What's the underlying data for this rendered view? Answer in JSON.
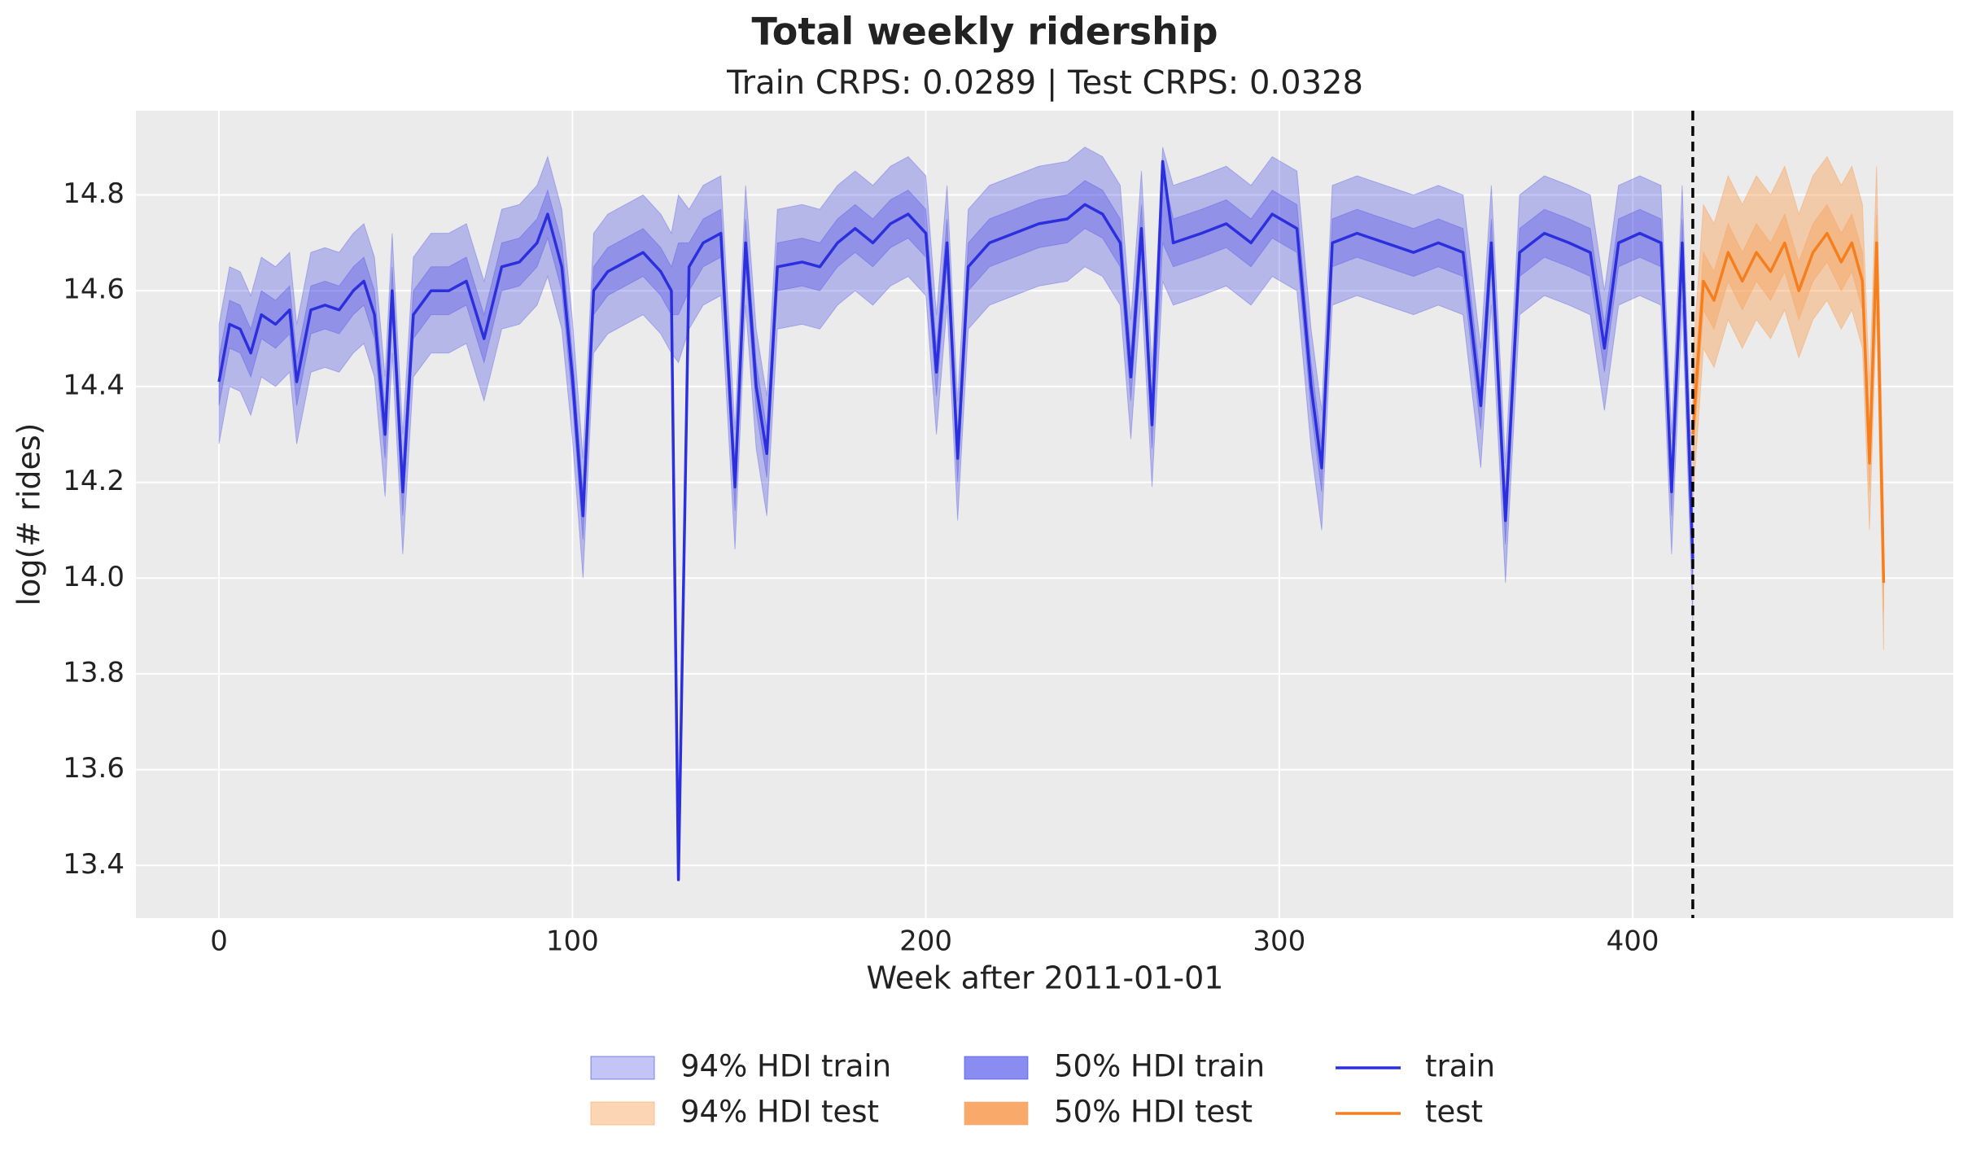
{
  "chart_data": {
    "type": "line",
    "title": "Total weekly ridership",
    "subtitle": "Train CRPS: 0.0289 | Test CRPS: 0.0328",
    "x_label": "Week after 2011-01-01",
    "y_label": "log(# rides)",
    "xlim": [
      -23.5,
      490.7
    ],
    "ylim": [
      13.29,
      14.976
    ],
    "xticks": [
      0,
      100,
      200,
      300,
      400
    ],
    "yticks": [
      13.4,
      13.6,
      13.8,
      {
        "value": 14,
        "label": "14.0"
      },
      14.2,
      14.4,
      14.6,
      14.8
    ],
    "grid": true,
    "vline": 417,
    "legend": "bottom",
    "series": [
      {
        "name": "train",
        "color": "#2b2fdc",
        "x": [
          0,
          3,
          6,
          9,
          12,
          16,
          20,
          22,
          26,
          30,
          34,
          38,
          41,
          44,
          47,
          49,
          52,
          55,
          60,
          65,
          70,
          75,
          80,
          85,
          90,
          93,
          97,
          100,
          103,
          106,
          110,
          115,
          120,
          125,
          128,
          130,
          133,
          137,
          142,
          146,
          149,
          152,
          155,
          158,
          165,
          170,
          175,
          180,
          185,
          190,
          195,
          200,
          203,
          206,
          209,
          212,
          218,
          225,
          232,
          240,
          245,
          250,
          255,
          258,
          261,
          264,
          267,
          270,
          278,
          285,
          292,
          298,
          305,
          309,
          312,
          315,
          322,
          330,
          338,
          345,
          352,
          357,
          360,
          364,
          368,
          375,
          382,
          388,
          392,
          396,
          402,
          408,
          411,
          414,
          417
        ],
        "values": [
          14.41,
          14.53,
          14.52,
          14.47,
          14.55,
          14.53,
          14.56,
          14.41,
          14.56,
          14.57,
          14.56,
          14.6,
          14.62,
          14.55,
          14.3,
          14.6,
          14.18,
          14.55,
          14.6,
          14.6,
          14.62,
          14.5,
          14.65,
          14.66,
          14.7,
          14.76,
          14.65,
          14.42,
          14.13,
          14.6,
          14.64,
          14.66,
          14.68,
          14.64,
          14.6,
          13.37,
          14.65,
          14.7,
          14.72,
          14.19,
          14.7,
          14.4,
          14.26,
          14.65,
          14.66,
          14.65,
          14.7,
          14.73,
          14.7,
          14.74,
          14.76,
          14.72,
          14.43,
          14.7,
          14.25,
          14.65,
          14.7,
          14.72,
          14.74,
          14.75,
          14.78,
          14.76,
          14.7,
          14.42,
          14.73,
          14.32,
          14.87,
          14.7,
          14.72,
          14.74,
          14.7,
          14.76,
          14.73,
          14.4,
          14.23,
          14.7,
          14.72,
          14.7,
          14.68,
          14.7,
          14.68,
          14.36,
          14.7,
          14.12,
          14.68,
          14.72,
          14.7,
          14.68,
          14.48,
          14.7,
          14.72,
          14.7,
          14.18,
          14.7,
          14.04
        ],
        "bands": [
          {
            "name": "94% HDI train",
            "color": "#3b3fe6",
            "opacity": 0.3,
            "lower": [
              14.28,
              14.4,
              14.39,
              14.34,
              14.42,
              14.4,
              14.43,
              14.28,
              14.43,
              14.44,
              14.43,
              14.47,
              14.49,
              14.42,
              14.17,
              14.47,
              14.05,
              14.42,
              14.47,
              14.47,
              14.49,
              14.37,
              14.52,
              14.53,
              14.57,
              14.63,
              14.52,
              14.29,
              14.0,
              14.47,
              14.51,
              14.53,
              14.55,
              14.51,
              14.47,
              14.45,
              14.52,
              14.57,
              14.59,
              14.06,
              14.57,
              14.27,
              14.13,
              14.52,
              14.53,
              14.52,
              14.57,
              14.6,
              14.57,
              14.61,
              14.63,
              14.59,
              14.3,
              14.57,
              14.12,
              14.52,
              14.57,
              14.59,
              14.61,
              14.62,
              14.65,
              14.63,
              14.57,
              14.29,
              14.6,
              14.19,
              14.62,
              14.57,
              14.59,
              14.61,
              14.57,
              14.63,
              14.6,
              14.27,
              14.1,
              14.57,
              14.59,
              14.57,
              14.55,
              14.57,
              14.55,
              14.23,
              14.57,
              13.99,
              14.55,
              14.59,
              14.57,
              14.55,
              14.35,
              14.57,
              14.59,
              14.57,
              14.05,
              14.57,
              13.91
            ],
            "upper": [
              14.53,
              14.65,
              14.64,
              14.59,
              14.67,
              14.65,
              14.68,
              14.53,
              14.68,
              14.69,
              14.68,
              14.72,
              14.74,
              14.67,
              14.42,
              14.72,
              14.3,
              14.67,
              14.72,
              14.72,
              14.74,
              14.62,
              14.77,
              14.78,
              14.82,
              14.88,
              14.77,
              14.54,
              14.25,
              14.72,
              14.76,
              14.78,
              14.8,
              14.76,
              14.72,
              14.8,
              14.77,
              14.82,
              14.84,
              14.31,
              14.82,
              14.52,
              14.38,
              14.77,
              14.78,
              14.77,
              14.82,
              14.85,
              14.82,
              14.86,
              14.88,
              14.84,
              14.55,
              14.82,
              14.37,
              14.77,
              14.82,
              14.84,
              14.86,
              14.87,
              14.9,
              14.88,
              14.82,
              14.54,
              14.85,
              14.44,
              14.9,
              14.82,
              14.84,
              14.86,
              14.82,
              14.88,
              14.85,
              14.52,
              14.35,
              14.82,
              14.84,
              14.82,
              14.8,
              14.82,
              14.8,
              14.48,
              14.82,
              14.24,
              14.8,
              14.84,
              14.82,
              14.8,
              14.6,
              14.82,
              14.84,
              14.82,
              14.3,
              14.82,
              14.16
            ]
          },
          {
            "name": "50% HDI train",
            "color": "#3b3fe6",
            "opacity": 0.3,
            "lower": [
              14.36,
              14.48,
              14.47,
              14.42,
              14.5,
              14.48,
              14.51,
              14.36,
              14.51,
              14.52,
              14.51,
              14.55,
              14.57,
              14.5,
              14.25,
              14.55,
              14.13,
              14.5,
              14.55,
              14.55,
              14.57,
              14.45,
              14.6,
              14.61,
              14.65,
              14.71,
              14.6,
              14.37,
              14.08,
              14.55,
              14.59,
              14.61,
              14.63,
              14.59,
              14.55,
              14.55,
              14.6,
              14.65,
              14.67,
              14.14,
              14.65,
              14.35,
              14.21,
              14.6,
              14.61,
              14.6,
              14.65,
              14.68,
              14.65,
              14.69,
              14.71,
              14.67,
              14.38,
              14.65,
              14.2,
              14.6,
              14.65,
              14.67,
              14.69,
              14.7,
              14.73,
              14.71,
              14.65,
              14.37,
              14.68,
              14.27,
              14.7,
              14.65,
              14.67,
              14.69,
              14.65,
              14.71,
              14.68,
              14.35,
              14.18,
              14.65,
              14.67,
              14.65,
              14.63,
              14.65,
              14.63,
              14.31,
              14.65,
              14.07,
              14.63,
              14.67,
              14.65,
              14.63,
              14.43,
              14.65,
              14.67,
              14.65,
              14.13,
              14.65,
              13.99
            ],
            "upper": [
              14.46,
              14.58,
              14.57,
              14.52,
              14.6,
              14.58,
              14.61,
              14.46,
              14.61,
              14.62,
              14.61,
              14.65,
              14.67,
              14.6,
              14.35,
              14.65,
              14.23,
              14.6,
              14.65,
              14.65,
              14.67,
              14.55,
              14.7,
              14.71,
              14.75,
              14.81,
              14.7,
              14.47,
              14.18,
              14.65,
              14.69,
              14.71,
              14.73,
              14.69,
              14.65,
              14.7,
              14.7,
              14.75,
              14.77,
              14.24,
              14.75,
              14.45,
              14.31,
              14.7,
              14.71,
              14.7,
              14.75,
              14.78,
              14.75,
              14.79,
              14.81,
              14.77,
              14.48,
              14.75,
              14.3,
              14.7,
              14.75,
              14.77,
              14.79,
              14.8,
              14.83,
              14.81,
              14.75,
              14.47,
              14.78,
              14.37,
              14.85,
              14.75,
              14.77,
              14.79,
              14.75,
              14.81,
              14.78,
              14.45,
              14.28,
              14.75,
              14.77,
              14.75,
              14.73,
              14.75,
              14.73,
              14.41,
              14.75,
              14.17,
              14.73,
              14.77,
              14.75,
              14.73,
              14.53,
              14.75,
              14.77,
              14.75,
              14.23,
              14.75,
              14.09
            ]
          }
        ]
      },
      {
        "name": "test",
        "color": "#f57f1e",
        "x": [
          417,
          420,
          423,
          427,
          431,
          435,
          439,
          443,
          447,
          451,
          455,
          459,
          462,
          465,
          467,
          469,
          471
        ],
        "values": [
          14.3,
          14.62,
          14.58,
          14.68,
          14.62,
          14.68,
          14.64,
          14.7,
          14.6,
          14.68,
          14.72,
          14.66,
          14.7,
          14.62,
          14.24,
          14.7,
          13.99
        ],
        "bands": [
          {
            "name": "94% HDI test",
            "color": "#f8a15a",
            "opacity": 0.45,
            "lower": [
              14.16,
              14.48,
              14.44,
              14.54,
              14.48,
              14.54,
              14.5,
              14.56,
              14.46,
              14.54,
              14.58,
              14.52,
              14.56,
              14.48,
              14.1,
              14.56,
              13.85
            ],
            "upper": [
              14.46,
              14.78,
              14.74,
              14.84,
              14.78,
              14.84,
              14.8,
              14.86,
              14.76,
              14.84,
              14.88,
              14.82,
              14.86,
              14.78,
              14.4,
              14.86,
              14.15
            ]
          },
          {
            "name": "50% HDI test",
            "color": "#f8a15a",
            "opacity": 0.45,
            "lower": [
              14.24,
              14.56,
              14.52,
              14.62,
              14.56,
              14.62,
              14.58,
              14.64,
              14.54,
              14.62,
              14.66,
              14.6,
              14.64,
              14.56,
              14.18,
              14.64,
              13.93
            ],
            "upper": [
              14.36,
              14.68,
              14.64,
              14.74,
              14.68,
              14.74,
              14.7,
              14.76,
              14.66,
              14.74,
              14.78,
              14.72,
              14.76,
              14.68,
              14.3,
              14.76,
              14.05
            ]
          }
        ]
      }
    ]
  }
}
